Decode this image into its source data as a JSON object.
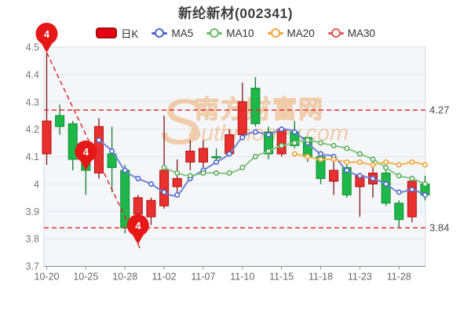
{
  "title": "新纶新材(002341)",
  "legend": [
    {
      "label": "日K",
      "type": "candle",
      "color": "#e60012",
      "border": "#a50f0f"
    },
    {
      "label": "MA5",
      "type": "line",
      "color": "#4a66cc"
    },
    {
      "label": "MA10",
      "type": "line",
      "color": "#68bb68"
    },
    {
      "label": "MA20",
      "type": "line",
      "color": "#f0a63c"
    },
    {
      "label": "MA30",
      "type": "line",
      "color": "#e25a56"
    }
  ],
  "watermark": {
    "initial": "S",
    "script": "outhmoney.com",
    "cn": "南方财富网"
  },
  "chart_data": {
    "type": "candlestick",
    "title": "新纶新材(002341)",
    "y_axis": {
      "min": 3.7,
      "max": 4.5,
      "tick_step": 0.1,
      "tick_labels": [
        "4.5",
        "4.4",
        "4.3",
        "4.2",
        "4.1",
        "4",
        "3.9",
        "3.8",
        "3.7"
      ]
    },
    "x_axis": {
      "tick_labels": [
        "10-20",
        "10-25",
        "10-28",
        "11-02",
        "11-07",
        "11-10",
        "11-15",
        "11-18",
        "11-23",
        "11-28"
      ],
      "label_every": 3
    },
    "candles_ohlc": [
      [
        4.11,
        4.48,
        4.07,
        4.23
      ],
      [
        4.25,
        4.29,
        4.18,
        4.21
      ],
      [
        4.22,
        4.23,
        4.05,
        4.09
      ],
      [
        4.12,
        4.14,
        3.96,
        4.05
      ],
      [
        4.04,
        4.24,
        4.02,
        4.21
      ],
      [
        4.11,
        4.21,
        3.97,
        4.06
      ],
      [
        4.05,
        4.07,
        3.82,
        3.84
      ],
      [
        3.89,
        3.96,
        3.78,
        3.95
      ],
      [
        3.88,
        3.95,
        3.85,
        3.94
      ],
      [
        3.92,
        4.25,
        3.91,
        4.05
      ],
      [
        3.99,
        4.09,
        3.96,
        4.02
      ],
      [
        4.08,
        4.16,
        4.05,
        4.12
      ],
      [
        4.08,
        4.16,
        4.06,
        4.13
      ],
      [
        4.1,
        4.13,
        4.07,
        4.1
      ],
      [
        4.11,
        4.2,
        4.1,
        4.18
      ],
      [
        4.18,
        4.37,
        4.16,
        4.3
      ],
      [
        4.35,
        4.39,
        4.21,
        4.22
      ],
      [
        4.19,
        4.21,
        4.09,
        4.11
      ],
      [
        4.11,
        4.21,
        4.1,
        4.2
      ],
      [
        4.19,
        4.23,
        4.13,
        4.14
      ],
      [
        4.17,
        4.17,
        4.08,
        4.1
      ],
      [
        4.1,
        4.12,
        4.0,
        4.02
      ],
      [
        4.01,
        4.08,
        3.96,
        4.05
      ],
      [
        4.06,
        4.07,
        3.95,
        3.96
      ],
      [
        3.99,
        4.04,
        3.88,
        4.03
      ],
      [
        4.0,
        4.08,
        3.95,
        4.04
      ],
      [
        4.04,
        4.06,
        3.92,
        3.93
      ],
      [
        3.93,
        3.94,
        3.84,
        3.87
      ],
      [
        3.88,
        4.02,
        3.86,
        4.01
      ],
      [
        4.0,
        4.03,
        3.94,
        3.96
      ]
    ],
    "series": [
      {
        "name": "MA5",
        "start_candle": 5,
        "color": "#7284d4",
        "marker": "#4a66cc",
        "values": [
          4.16,
          4.12,
          4.05,
          4.02,
          4.0,
          3.97,
          3.96,
          4.02,
          4.05,
          4.08,
          4.11,
          4.17,
          4.19,
          4.18,
          4.2,
          4.19,
          4.15,
          4.11,
          4.1,
          4.05,
          4.03,
          4.02,
          4.0,
          3.97,
          3.98,
          3.96
        ]
      },
      {
        "name": "MA10",
        "start_candle": 10,
        "color": "#85c885",
        "marker": "#58ad58",
        "values": [
          4.06,
          4.04,
          4.03,
          4.04,
          4.04,
          4.04,
          4.06,
          4.1,
          4.12,
          4.14,
          4.15,
          4.16,
          4.15,
          4.14,
          4.13,
          4.11,
          4.09,
          4.06,
          4.03,
          4.02,
          4.0
        ]
      },
      {
        "name": "MA20",
        "start_candle": 20,
        "color": "#f5b44e",
        "marker": "#eea236",
        "values": [
          4.11,
          4.1,
          4.09,
          4.09,
          4.08,
          4.08,
          4.07,
          4.08,
          4.07,
          4.08,
          4.07
        ]
      }
    ],
    "reference_lines": [
      {
        "value": 4.27,
        "label": "4.27"
      },
      {
        "value": 3.84,
        "label": "3.84"
      }
    ],
    "trend_line": {
      "from_candle": 1,
      "from_price": 4.48,
      "to_candle": 8,
      "to_price": 3.78
    },
    "markers": [
      {
        "candle": 1,
        "price": 4.48,
        "label": "4"
      },
      {
        "candle": 4,
        "price": 4.05,
        "label": "4"
      },
      {
        "candle": 8,
        "price": 3.78,
        "label": "4"
      }
    ],
    "colors": {
      "up": "#e8302e",
      "up_border": "#b01212",
      "up_wick": "#7b1a1a",
      "down": "#1fb74a",
      "down_border": "#0f8f33",
      "down_wick": "#147a31",
      "reference": "#e02020",
      "marker_pin": "#e61717",
      "grid": "#e3e7ef",
      "plot_bg": "#f4f6fa",
      "border": "#d6dae2",
      "axis": "#8f959e",
      "axis_text": "#767676",
      "ref_text": "#4a4a4a",
      "watermark": "#eda45c"
    }
  }
}
